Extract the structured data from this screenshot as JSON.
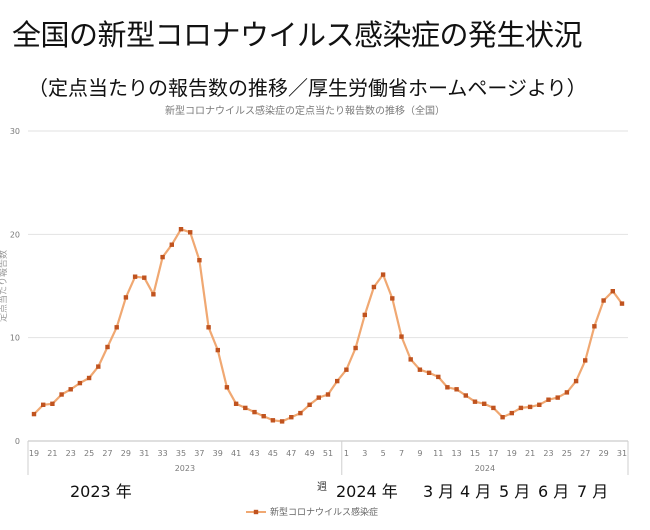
{
  "header": {
    "title": "全国の新型コロナウイルス感染症の発生状況",
    "subtitle": "（定点当たりの報告数の推移／厚生労働省ホームページより）"
  },
  "annotations": {
    "year_2023": "2023 年",
    "year_2024": "2024 年",
    "months": [
      "3 月",
      "4 月",
      "5 月",
      "6 月",
      "7 月"
    ]
  },
  "chart_data": {
    "type": "line",
    "title": "新型コロナウイルス感染症の定点当たり報告数の推移（全国）",
    "ylabel": "定点当たり報告数",
    "xlabel": "週",
    "ylim": [
      0,
      30
    ],
    "yticks": [
      0,
      10,
      20,
      30
    ],
    "grid": true,
    "legend": "bottom",
    "year_groups": [
      {
        "label": "2023",
        "start": 0,
        "end": 33
      },
      {
        "label": "2024",
        "start": 34,
        "end": 64
      }
    ],
    "x_tick_labels": [
      "19",
      "21",
      "23",
      "25",
      "27",
      "29",
      "31",
      "33",
      "35",
      "37",
      "39",
      "41",
      "43",
      "45",
      "47",
      "49",
      "51",
      "1",
      "3",
      "5",
      "7",
      "9",
      "11",
      "13",
      "15",
      "17",
      "19",
      "21",
      "23",
      "25",
      "27",
      "29",
      "31"
    ],
    "series": [
      {
        "name": "新型コロナウイルス感染症",
        "color": "#c0531f",
        "line_color": "#f0a872",
        "values": [
          2.6,
          3.5,
          3.6,
          4.5,
          5.0,
          5.6,
          6.1,
          7.2,
          9.1,
          11.0,
          13.9,
          15.9,
          15.8,
          14.2,
          17.8,
          19.0,
          20.5,
          20.2,
          17.5,
          11.0,
          8.8,
          5.2,
          3.6,
          3.2,
          2.8,
          2.4,
          2.0,
          1.9,
          2.3,
          2.7,
          3.5,
          4.2,
          4.5,
          5.8,
          6.9,
          9.0,
          12.2,
          14.9,
          16.1,
          13.8,
          10.1,
          7.9,
          6.9,
          6.6,
          6.2,
          5.2,
          5.0,
          4.4,
          3.8,
          3.6,
          3.2,
          2.3,
          2.7,
          3.2,
          3.3,
          3.5,
          4.0,
          4.2,
          4.7,
          5.8,
          7.8,
          11.1,
          13.6,
          14.5,
          13.3
        ]
      }
    ]
  }
}
